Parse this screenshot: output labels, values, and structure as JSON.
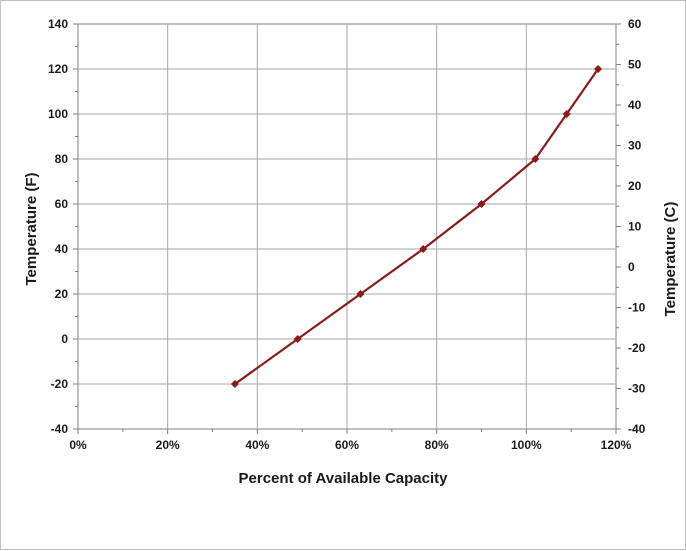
{
  "chart_data": {
    "type": "line",
    "title": "",
    "xlabel": "Percent of Available Capacity",
    "ylabel": "Temperature (F)",
    "y2label": "Temperature  (C)",
    "x_ticks": [
      "0%",
      "20%",
      "40%",
      "60%",
      "80%",
      "100%",
      "120%"
    ],
    "y_ticks": [
      "-40",
      "-20",
      "0",
      "20",
      "40",
      "60",
      "80",
      "100",
      "120",
      "140"
    ],
    "y2_ticks": [
      "-40",
      "-30",
      "-20",
      "-10",
      "0",
      "10",
      "20",
      "30",
      "40",
      "50",
      "60"
    ],
    "xlim": [
      0,
      120
    ],
    "ylim": [
      -40,
      140
    ],
    "y2lim": [
      -40,
      60
    ],
    "grid": true,
    "series": [
      {
        "color": "#8b1a1a",
        "x": [
          35,
          49,
          63,
          77,
          90,
          102,
          109,
          116
        ],
        "y": [
          -20,
          0,
          20,
          40,
          60,
          80,
          100,
          120
        ]
      }
    ]
  }
}
